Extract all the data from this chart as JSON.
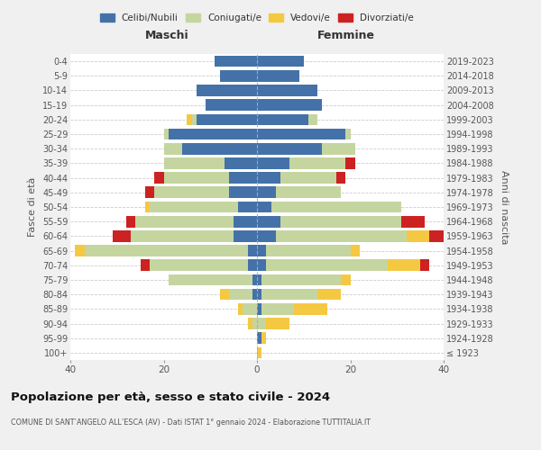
{
  "age_groups": [
    "100+",
    "95-99",
    "90-94",
    "85-89",
    "80-84",
    "75-79",
    "70-74",
    "65-69",
    "60-64",
    "55-59",
    "50-54",
    "45-49",
    "40-44",
    "35-39",
    "30-34",
    "25-29",
    "20-24",
    "15-19",
    "10-14",
    "5-9",
    "0-4"
  ],
  "birth_years": [
    "≤ 1923",
    "1924-1928",
    "1929-1933",
    "1934-1938",
    "1939-1943",
    "1944-1948",
    "1949-1953",
    "1954-1958",
    "1959-1963",
    "1964-1968",
    "1969-1973",
    "1974-1978",
    "1979-1983",
    "1984-1988",
    "1989-1993",
    "1994-1998",
    "1999-2003",
    "2004-2008",
    "2009-2013",
    "2014-2018",
    "2019-2023"
  ],
  "colors": {
    "celibi": "#4472a8",
    "coniugati": "#c5d5a0",
    "vedovi": "#f5c842",
    "divorziati": "#cc2222"
  },
  "maschi": {
    "celibi": [
      0,
      0,
      0,
      0,
      1,
      1,
      2,
      2,
      5,
      5,
      4,
      6,
      6,
      7,
      16,
      19,
      13,
      11,
      13,
      8,
      9
    ],
    "coniugati": [
      0,
      0,
      1,
      3,
      5,
      18,
      21,
      35,
      22,
      21,
      19,
      16,
      14,
      13,
      4,
      1,
      1,
      0,
      0,
      0,
      0
    ],
    "vedovi": [
      0,
      0,
      1,
      1,
      2,
      0,
      0,
      2,
      0,
      0,
      1,
      0,
      0,
      0,
      0,
      0,
      1,
      0,
      0,
      0,
      0
    ],
    "divorziati": [
      0,
      0,
      0,
      0,
      0,
      0,
      2,
      0,
      4,
      2,
      0,
      2,
      2,
      0,
      0,
      0,
      0,
      0,
      0,
      0,
      0
    ]
  },
  "femmine": {
    "celibi": [
      0,
      1,
      0,
      1,
      1,
      1,
      2,
      2,
      4,
      5,
      3,
      4,
      5,
      7,
      14,
      19,
      11,
      14,
      13,
      9,
      10
    ],
    "coniugati": [
      0,
      0,
      2,
      7,
      12,
      17,
      26,
      18,
      28,
      26,
      28,
      14,
      12,
      12,
      7,
      1,
      2,
      0,
      0,
      0,
      0
    ],
    "vedovi": [
      1,
      1,
      5,
      7,
      5,
      2,
      7,
      2,
      5,
      0,
      0,
      0,
      0,
      0,
      0,
      0,
      0,
      0,
      0,
      0,
      0
    ],
    "divorziati": [
      0,
      0,
      0,
      0,
      0,
      0,
      2,
      0,
      3,
      5,
      0,
      0,
      2,
      2,
      0,
      0,
      0,
      0,
      0,
      0,
      0
    ]
  },
  "xlim": 40,
  "title": "Popolazione per età, sesso e stato civile - 2024",
  "subtitle": "COMUNE DI SANT’ANGELO ALL’ESCA (AV) - Dati ISTAT 1° gennaio 2024 - Elaborazione TUTTITALIA.IT",
  "ylabel_left": "Fasce di età",
  "ylabel_right": "Anni di nascita",
  "xlabel_left": "Maschi",
  "xlabel_right": "Femmine",
  "legend_labels": [
    "Celibi/Nubili",
    "Coniugati/e",
    "Vedovi/e",
    "Divorziati/e"
  ],
  "bg_color": "#f0f0f0",
  "plot_bg": "#ffffff"
}
